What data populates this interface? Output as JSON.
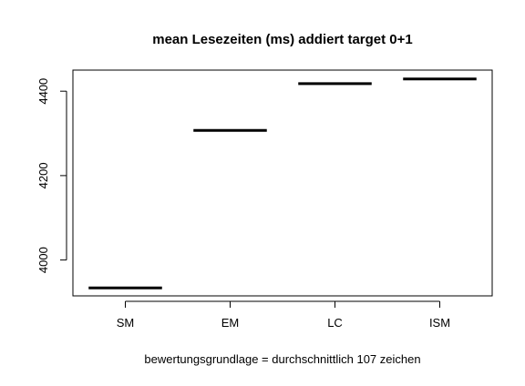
{
  "chart_data": {
    "type": "bar",
    "title": "mean Lesezeiten (ms) addiert target 0+1",
    "xlabel": "bewertungsgrundlage = durchschnittlich 107 zeichen",
    "ylabel": "",
    "categories": [
      "SM",
      "EM",
      "LC",
      "ISM"
    ],
    "values": [
      3934,
      4307,
      4418,
      4429
    ],
    "ylim": [
      3915,
      4450
    ],
    "yticks": [
      4000,
      4200,
      4400
    ],
    "ytick_labels": [
      "4000",
      "4200",
      "4400"
    ],
    "mark_style": "horizontal mean segments",
    "grid": false,
    "legend": "none"
  }
}
